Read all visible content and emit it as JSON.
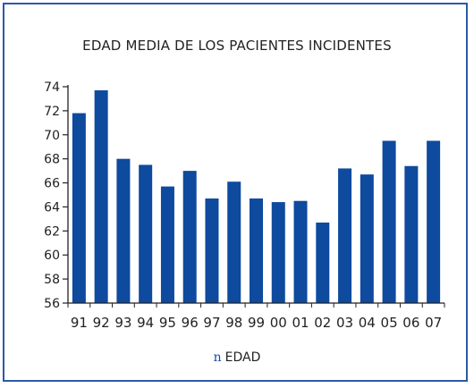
{
  "chart_data": {
    "type": "bar",
    "title": "EDAD MEDIA DE LOS PACIENTES INCIDENTES",
    "categories": [
      "91",
      "92",
      "93",
      "94",
      "95",
      "96",
      "97",
      "98",
      "99",
      "00",
      "01",
      "02",
      "03",
      "04",
      "05",
      "06",
      "07"
    ],
    "series": [
      {
        "name": "EDAD",
        "values": [
          71.8,
          73.7,
          68.0,
          67.5,
          65.7,
          67.0,
          64.7,
          66.1,
          64.7,
          64.4,
          64.5,
          62.7,
          67.2,
          66.7,
          69.5,
          67.4,
          69.5
        ]
      }
    ],
    "xlabel": "",
    "ylabel": "",
    "ylim": [
      56,
      74
    ],
    "yticks": [
      56,
      58,
      60,
      62,
      64,
      66,
      68,
      70,
      72,
      74
    ],
    "grid": false,
    "legend": "bottom",
    "legend_marker": "n",
    "bar_color": "#0e4a9e",
    "axis_color": "#222222",
    "frame_color": "#2a5aa8"
  }
}
